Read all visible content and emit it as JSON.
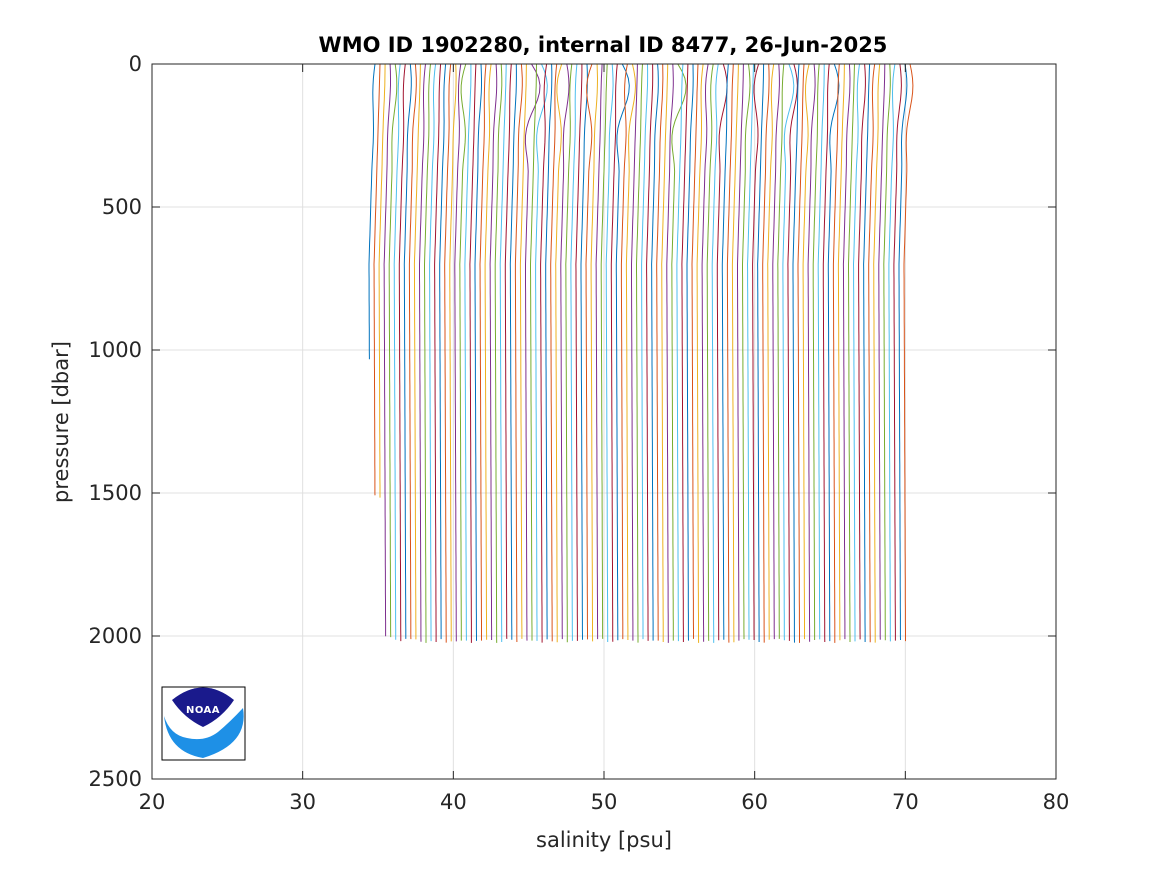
{
  "chart_data": {
    "type": "line",
    "title": "WMO ID 1902280, internal ID 8477, 26-Jun-2025",
    "xlabel": "salinity [psu]",
    "ylabel": "pressure [dbar]",
    "xlim": [
      20,
      80
    ],
    "ylim": [
      0,
      2500
    ],
    "y_reversed": true,
    "x_ticks": [
      "20",
      "30",
      "40",
      "50",
      "60",
      "70",
      "80"
    ],
    "y_ticks": [
      "0",
      "500",
      "1000",
      "1500",
      "2000",
      "2500"
    ],
    "grid": true,
    "legend": "none",
    "series_description_offsets": "profiles are offset by about 0.33 psu each",
    "profile_count": 107,
    "first_profile_salinity_at_surface": 34.8,
    "profile_offset_psu": 0.335,
    "series_colors": [
      "#0072BD",
      "#D95319",
      "#EDB120",
      "#7E2F8E",
      "#77AC30",
      "#4DBEEE",
      "#A2142F"
    ],
    "series": [
      {
        "profile_range": "first profiles",
        "max_pressure": [
          1030,
          1510,
          1520,
          2000
        ]
      },
      {
        "profile_range": "remaining profiles",
        "max_pressure": 2015
      }
    ]
  },
  "logo": {
    "label": "NOAA",
    "text": "NOAA",
    "colors": {
      "dark_blue": "#1a1a8c",
      "light_blue": "#1e90e6",
      "white": "#ffffff"
    }
  }
}
